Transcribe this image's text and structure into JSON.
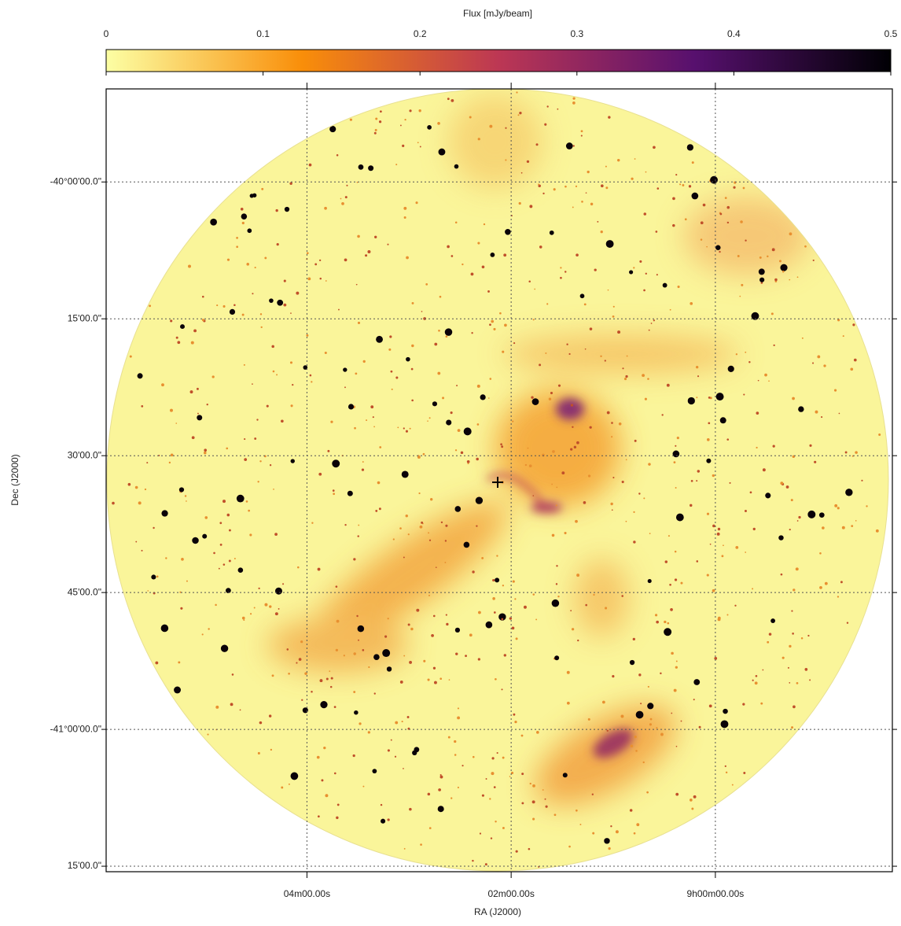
{
  "chart_data": {
    "type": "image",
    "colorbar": {
      "label": "Flux [mJy/beam]",
      "lim": [
        0,
        0.5
      ],
      "ticks": [
        0,
        0.1,
        0.2,
        0.3,
        0.4,
        0.5
      ],
      "colormap": [
        "#fcffa4",
        "#f98e09",
        "#bc3754",
        "#57106e",
        "#000004"
      ]
    },
    "xlabel": "RA (J2000)",
    "ylabel": "Dec (J2000)",
    "xlim": [
      358,
      -104
    ],
    "xticks": [
      {
        "value": 240,
        "label": "04m00.00s"
      },
      {
        "value": 120,
        "label": "02m00.00s"
      },
      {
        "value": 0,
        "label": "9h00m00.00s"
      }
    ],
    "ylim": [
      -41.26,
      -39.83
    ],
    "yticks": [
      {
        "value": -40,
        "label": "-40°00'00.0\""
      },
      {
        "value": -40.25,
        "label": "15'00.0\""
      },
      {
        "value": -40.5,
        "label": "30'00.0\""
      },
      {
        "value": -40.75,
        "label": "45'00.0\""
      },
      {
        "value": -41,
        "label": "-41°00'00.0\""
      },
      {
        "value": -41.25,
        "label": "15'00.0\""
      }
    ],
    "grid": true
  }
}
